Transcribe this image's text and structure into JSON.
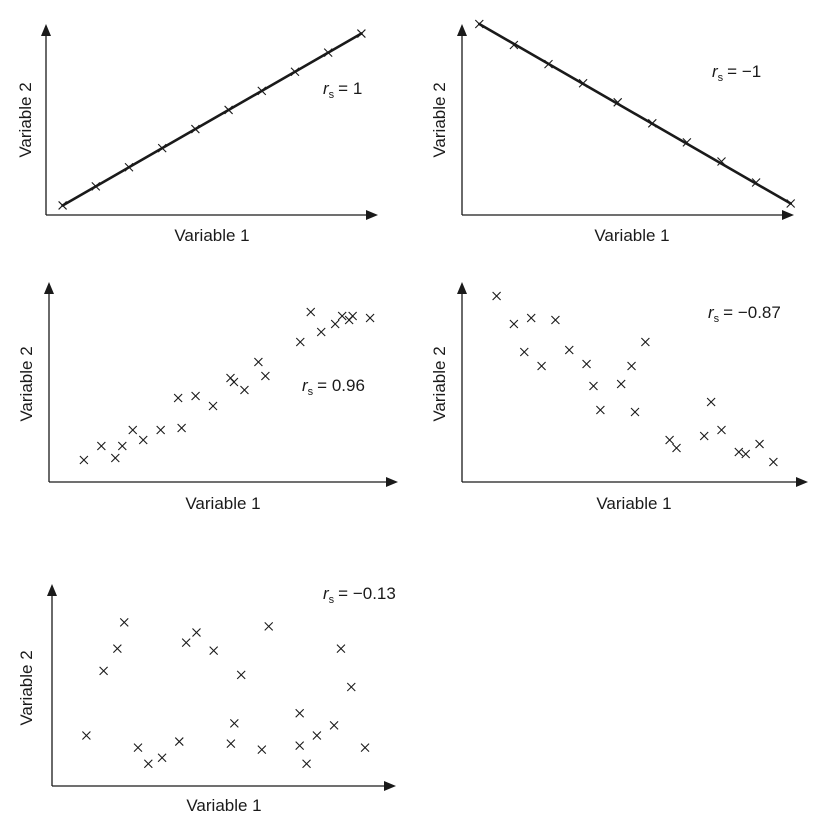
{
  "chart_data": [
    {
      "type": "scatter",
      "xlabel": "Variable 1",
      "ylabel": "Variable 2",
      "annotation": {
        "symbol": "r",
        "subscript": "s",
        "value": "= 1"
      },
      "fit_line": true,
      "points": [
        [
          0.5,
          0.5
        ],
        [
          1.5,
          1.5
        ],
        [
          2.5,
          2.5
        ],
        [
          3.5,
          3.5
        ],
        [
          4.5,
          4.5
        ],
        [
          5.5,
          5.5
        ],
        [
          6.5,
          6.5
        ],
        [
          7.5,
          7.5
        ],
        [
          8.5,
          8.5
        ],
        [
          9.5,
          9.5
        ]
      ]
    },
    {
      "type": "scatter",
      "xlabel": "Variable 1",
      "ylabel": "Variable 2",
      "annotation": {
        "symbol": "r",
        "subscript": "s",
        "value": "= −1"
      },
      "fit_line": true,
      "points": [
        [
          0.5,
          10
        ],
        [
          1.5,
          8.9
        ],
        [
          2.5,
          7.9
        ],
        [
          3.5,
          6.9
        ],
        [
          4.5,
          5.9
        ],
        [
          5.5,
          4.8
        ],
        [
          6.5,
          3.8
        ],
        [
          7.5,
          2.8
        ],
        [
          8.5,
          1.7
        ],
        [
          9.5,
          0.6
        ]
      ]
    },
    {
      "type": "scatter",
      "xlabel": "Variable 1",
      "ylabel": "Variable 2",
      "annotation": {
        "symbol": "r",
        "subscript": "s",
        "value": "= 0.96"
      },
      "fit_line": false,
      "points": [
        [
          1.0,
          1.1
        ],
        [
          1.5,
          1.8
        ],
        [
          1.9,
          1.2
        ],
        [
          2.1,
          1.8
        ],
        [
          2.4,
          2.6
        ],
        [
          2.7,
          2.1
        ],
        [
          3.2,
          2.6
        ],
        [
          3.7,
          4.2
        ],
        [
          3.8,
          2.7
        ],
        [
          4.2,
          4.3
        ],
        [
          4.7,
          3.8
        ],
        [
          5.2,
          5.2
        ],
        [
          5.3,
          5.0
        ],
        [
          5.6,
          4.6
        ],
        [
          6.0,
          6.0
        ],
        [
          6.2,
          5.3
        ],
        [
          7.2,
          7.0
        ],
        [
          7.5,
          8.5
        ],
        [
          7.8,
          7.5
        ],
        [
          8.2,
          7.9
        ],
        [
          8.4,
          8.3
        ],
        [
          8.7,
          8.3
        ],
        [
          9.2,
          8.2
        ],
        [
          8.6,
          8.1
        ]
      ]
    },
    {
      "type": "scatter",
      "xlabel": "Variable 1",
      "ylabel": "Variable 2",
      "annotation": {
        "symbol": "r",
        "subscript": "s",
        "value": "= −0.87"
      },
      "fit_line": false,
      "points": [
        [
          1.0,
          9.3
        ],
        [
          1.5,
          7.9
        ],
        [
          1.8,
          6.5
        ],
        [
          2.0,
          8.2
        ],
        [
          2.3,
          5.8
        ],
        [
          2.7,
          8.1
        ],
        [
          3.1,
          6.6
        ],
        [
          3.6,
          5.9
        ],
        [
          3.8,
          4.8
        ],
        [
          4.0,
          3.6
        ],
        [
          4.6,
          4.9
        ],
        [
          4.9,
          5.8
        ],
        [
          5.0,
          3.5
        ],
        [
          5.3,
          7.0
        ],
        [
          6.0,
          2.1
        ],
        [
          6.2,
          1.7
        ],
        [
          7.0,
          2.3
        ],
        [
          7.2,
          4.0
        ],
        [
          7.5,
          2.6
        ],
        [
          8.0,
          1.5
        ],
        [
          8.2,
          1.4
        ],
        [
          8.6,
          1.9
        ],
        [
          9.0,
          1.0
        ]
      ]
    },
    {
      "type": "scatter",
      "xlabel": "Variable 1",
      "ylabel": "Variable 2",
      "annotation": {
        "symbol": "r",
        "subscript": "s",
        "value": "= −0.13"
      },
      "fit_line": false,
      "points": [
        [
          1.0,
          2.5
        ],
        [
          1.5,
          5.7
        ],
        [
          1.9,
          6.8
        ],
        [
          2.1,
          8.1
        ],
        [
          2.5,
          1.9
        ],
        [
          2.8,
          1.1
        ],
        [
          3.2,
          1.4
        ],
        [
          3.7,
          2.2
        ],
        [
          3.9,
          7.1
        ],
        [
          4.2,
          7.6
        ],
        [
          4.7,
          6.7
        ],
        [
          5.2,
          2.1
        ],
        [
          5.3,
          3.1
        ],
        [
          5.5,
          5.5
        ],
        [
          6.1,
          1.8
        ],
        [
          6.3,
          7.9
        ],
        [
          7.2,
          3.6
        ],
        [
          7.2,
          2.0
        ],
        [
          7.4,
          1.1
        ],
        [
          7.7,
          2.5
        ],
        [
          8.2,
          3.0
        ],
        [
          8.4,
          6.8
        ],
        [
          8.7,
          4.9
        ],
        [
          9.1,
          1.9
        ]
      ]
    }
  ]
}
